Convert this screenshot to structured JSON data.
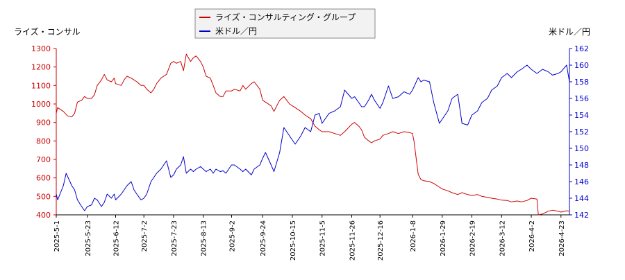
{
  "chart_data": {
    "type": "line",
    "left_axis_label": "ライズ・コンサル",
    "right_axis_label": "米ドル／円",
    "legend_placement": "top-center",
    "grid": false,
    "x_ticks": [
      "2025-5-1",
      "2025-5-23",
      "2025-6-12",
      "2025-7-2",
      "2025-7-23",
      "2025-8-13",
      "2025-9-2",
      "2025-9-24",
      "2025-10-15",
      "2025-11-5",
      "2025-11-26",
      "2025-12-16",
      "2026-1-8",
      "2026-1-29",
      "2026-2-19",
      "2026-3-12",
      "2026-4-2",
      "2026-4-23"
    ],
    "x_range": [
      "2025-5-1",
      "2026-4-29"
    ],
    "y_left": {
      "ylim": [
        400,
        1300
      ],
      "ticks": [
        400,
        500,
        600,
        700,
        800,
        900,
        1000,
        1100,
        1200,
        1300
      ]
    },
    "y_right": {
      "ylim": [
        142,
        162
      ],
      "ticks": [
        142,
        144,
        146,
        148,
        150,
        152,
        154,
        156,
        158,
        160,
        162
      ]
    },
    "series": [
      {
        "name": "ライズ・コンサルティング・グループ",
        "axis": "left",
        "color": "#cc0000",
        "points": [
          [
            "2025-5-1",
            950
          ],
          [
            "2025-5-2",
            980
          ],
          [
            "2025-5-6",
            960
          ],
          [
            "2025-5-9",
            935
          ],
          [
            "2025-5-12",
            930
          ],
          [
            "2025-5-14",
            950
          ],
          [
            "2025-5-16",
            1010
          ],
          [
            "2025-5-19",
            1020
          ],
          [
            "2025-5-21",
            1040
          ],
          [
            "2025-5-23",
            1030
          ],
          [
            "2025-5-26",
            1030
          ],
          [
            "2025-5-28",
            1050
          ],
          [
            "2025-5-30",
            1100
          ],
          [
            "2025-6-2",
            1130
          ],
          [
            "2025-6-4",
            1160
          ],
          [
            "2025-6-6",
            1130
          ],
          [
            "2025-6-9",
            1120
          ],
          [
            "2025-6-11",
            1140
          ],
          [
            "2025-6-12",
            1110
          ],
          [
            "2025-6-16",
            1100
          ],
          [
            "2025-6-18",
            1130
          ],
          [
            "2025-6-20",
            1150
          ],
          [
            "2025-6-23",
            1140
          ],
          [
            "2025-6-25",
            1130
          ],
          [
            "2025-6-27",
            1120
          ],
          [
            "2025-6-30",
            1100
          ],
          [
            "2025-7-2",
            1100
          ],
          [
            "2025-7-4",
            1080
          ],
          [
            "2025-7-7",
            1060
          ],
          [
            "2025-7-9",
            1080
          ],
          [
            "2025-7-11",
            1110
          ],
          [
            "2025-7-14",
            1140
          ],
          [
            "2025-7-16",
            1150
          ],
          [
            "2025-7-18",
            1160
          ],
          [
            "2025-7-21",
            1220
          ],
          [
            "2025-7-23",
            1230
          ],
          [
            "2025-7-25",
            1220
          ],
          [
            "2025-7-28",
            1230
          ],
          [
            "2025-7-30",
            1180
          ],
          [
            "2025-8-1",
            1270
          ],
          [
            "2025-8-4",
            1230
          ],
          [
            "2025-8-6",
            1250
          ],
          [
            "2025-8-8",
            1260
          ],
          [
            "2025-8-11",
            1230
          ],
          [
            "2025-8-13",
            1200
          ],
          [
            "2025-8-15",
            1150
          ],
          [
            "2025-8-18",
            1140
          ],
          [
            "2025-8-20",
            1100
          ],
          [
            "2025-8-22",
            1060
          ],
          [
            "2025-8-25",
            1040
          ],
          [
            "2025-8-27",
            1040
          ],
          [
            "2025-8-29",
            1070
          ],
          [
            "2025-9-2",
            1070
          ],
          [
            "2025-9-4",
            1080
          ],
          [
            "2025-9-8",
            1070
          ],
          [
            "2025-9-10",
            1100
          ],
          [
            "2025-9-12",
            1080
          ],
          [
            "2025-9-16",
            1110
          ],
          [
            "2025-9-18",
            1120
          ],
          [
            "2025-9-22",
            1080
          ],
          [
            "2025-9-24",
            1020
          ],
          [
            "2025-9-26",
            1010
          ],
          [
            "2025-9-30",
            990
          ],
          [
            "2025-10-2",
            960
          ],
          [
            "2025-10-6",
            1020
          ],
          [
            "2025-10-9",
            1040
          ],
          [
            "2025-10-13",
            1000
          ],
          [
            "2025-10-15",
            990
          ],
          [
            "2025-10-17",
            980
          ],
          [
            "2025-10-21",
            960
          ],
          [
            "2025-10-24",
            940
          ],
          [
            "2025-10-28",
            920
          ],
          [
            "2025-10-31",
            880
          ],
          [
            "2025-11-3",
            860
          ],
          [
            "2025-11-5",
            850
          ],
          [
            "2025-11-10",
            850
          ],
          [
            "2025-11-14",
            840
          ],
          [
            "2025-11-18",
            830
          ],
          [
            "2025-11-21",
            850
          ],
          [
            "2025-11-26",
            890
          ],
          [
            "2025-11-28",
            900
          ],
          [
            "2025-12-1",
            880
          ],
          [
            "2025-12-3",
            860
          ],
          [
            "2025-12-5",
            820
          ],
          [
            "2025-12-8",
            800
          ],
          [
            "2025-12-10",
            790
          ],
          [
            "2025-12-12",
            800
          ],
          [
            "2025-12-16",
            810
          ],
          [
            "2025-12-18",
            830
          ],
          [
            "2025-12-22",
            840
          ],
          [
            "2025-12-25",
            850
          ],
          [
            "2025-12-29",
            840
          ],
          [
            "2026-1-2",
            850
          ],
          [
            "2026-1-6",
            845
          ],
          [
            "2026-1-8",
            840
          ],
          [
            "2026-1-9",
            800
          ],
          [
            "2026-1-12",
            620
          ],
          [
            "2026-1-14",
            590
          ],
          [
            "2026-1-16",
            585
          ],
          [
            "2026-1-20",
            580
          ],
          [
            "2026-1-23",
            570
          ],
          [
            "2026-1-27",
            550
          ],
          [
            "2026-1-29",
            540
          ],
          [
            "2026-2-2",
            530
          ],
          [
            "2026-2-5",
            520
          ],
          [
            "2026-2-9",
            510
          ],
          [
            "2026-2-12",
            520
          ],
          [
            "2026-2-16",
            510
          ],
          [
            "2026-2-19",
            505
          ],
          [
            "2026-2-23",
            510
          ],
          [
            "2026-2-26",
            500
          ],
          [
            "2026-3-2",
            495
          ],
          [
            "2026-3-5",
            490
          ],
          [
            "2026-3-9",
            485
          ],
          [
            "2026-3-12",
            480
          ],
          [
            "2026-3-16",
            478
          ],
          [
            "2026-3-19",
            470
          ],
          [
            "2026-3-23",
            475
          ],
          [
            "2026-3-26",
            470
          ],
          [
            "2026-3-30",
            478
          ],
          [
            "2026-4-2",
            490
          ],
          [
            "2026-4-6",
            485
          ],
          [
            "2026-4-7",
            400
          ],
          [
            "2026-4-10",
            405
          ],
          [
            "2026-4-14",
            420
          ],
          [
            "2026-4-17",
            425
          ],
          [
            "2026-4-21",
            420
          ],
          [
            "2026-4-23",
            415
          ],
          [
            "2026-4-27",
            422
          ],
          [
            "2026-4-29",
            420
          ]
        ]
      },
      {
        "name": "米ドル／円",
        "axis": "right",
        "color": "#0000cc",
        "points": [
          [
            "2025-5-1",
            144.5
          ],
          [
            "2025-5-2",
            143.8
          ],
          [
            "2025-5-6",
            145.5
          ],
          [
            "2025-5-8",
            147.0
          ],
          [
            "2025-5-12",
            145.5
          ],
          [
            "2025-5-14",
            145.0
          ],
          [
            "2025-5-16",
            143.8
          ],
          [
            "2025-5-19",
            143.0
          ],
          [
            "2025-5-21",
            142.5
          ],
          [
            "2025-5-23",
            143.0
          ],
          [
            "2025-5-26",
            143.2
          ],
          [
            "2025-5-28",
            144.0
          ],
          [
            "2025-5-30",
            143.8
          ],
          [
            "2025-6-2",
            143.0
          ],
          [
            "2025-6-4",
            143.5
          ],
          [
            "2025-6-6",
            144.5
          ],
          [
            "2025-6-9",
            144.0
          ],
          [
            "2025-6-11",
            144.5
          ],
          [
            "2025-6-12",
            143.8
          ],
          [
            "2025-6-16",
            144.5
          ],
          [
            "2025-6-18",
            145.0
          ],
          [
            "2025-6-20",
            145.5
          ],
          [
            "2025-6-23",
            146.0
          ],
          [
            "2025-6-25",
            145.0
          ],
          [
            "2025-6-27",
            144.5
          ],
          [
            "2025-6-30",
            143.8
          ],
          [
            "2025-7-2",
            144.0
          ],
          [
            "2025-7-4",
            144.5
          ],
          [
            "2025-7-7",
            146.0
          ],
          [
            "2025-7-9",
            146.5
          ],
          [
            "2025-7-11",
            147.0
          ],
          [
            "2025-7-14",
            147.5
          ],
          [
            "2025-7-16",
            148.0
          ],
          [
            "2025-7-18",
            148.5
          ],
          [
            "2025-7-21",
            146.5
          ],
          [
            "2025-7-23",
            146.8
          ],
          [
            "2025-7-25",
            147.5
          ],
          [
            "2025-7-28",
            148.0
          ],
          [
            "2025-7-30",
            149.0
          ],
          [
            "2025-8-1",
            147.0
          ],
          [
            "2025-8-4",
            147.5
          ],
          [
            "2025-8-6",
            147.2
          ],
          [
            "2025-8-8",
            147.5
          ],
          [
            "2025-8-11",
            147.8
          ],
          [
            "2025-8-13",
            147.5
          ],
          [
            "2025-8-15",
            147.2
          ],
          [
            "2025-8-18",
            147.5
          ],
          [
            "2025-8-20",
            147.0
          ],
          [
            "2025-8-22",
            147.5
          ],
          [
            "2025-8-25",
            147.2
          ],
          [
            "2025-8-27",
            147.3
          ],
          [
            "2025-8-29",
            147.0
          ],
          [
            "2025-9-2",
            148.0
          ],
          [
            "2025-9-4",
            148.0
          ],
          [
            "2025-9-8",
            147.5
          ],
          [
            "2025-9-10",
            147.2
          ],
          [
            "2025-9-12",
            147.5
          ],
          [
            "2025-9-16",
            146.8
          ],
          [
            "2025-9-18",
            147.5
          ],
          [
            "2025-9-22",
            148.0
          ],
          [
            "2025-9-24",
            148.8
          ],
          [
            "2025-9-26",
            149.5
          ],
          [
            "2025-9-30",
            148.0
          ],
          [
            "2025-10-2",
            147.2
          ],
          [
            "2025-10-6",
            149.5
          ],
          [
            "2025-10-9",
            152.5
          ],
          [
            "2025-10-13",
            151.5
          ],
          [
            "2025-10-15",
            151.0
          ],
          [
            "2025-10-17",
            150.5
          ],
          [
            "2025-10-21",
            151.5
          ],
          [
            "2025-10-24",
            152.5
          ],
          [
            "2025-10-28",
            152.0
          ],
          [
            "2025-10-31",
            154.0
          ],
          [
            "2025-11-3",
            154.2
          ],
          [
            "2025-11-5",
            153.0
          ],
          [
            "2025-11-10",
            154.2
          ],
          [
            "2025-11-14",
            154.5
          ],
          [
            "2025-11-18",
            155.0
          ],
          [
            "2025-11-21",
            157.0
          ],
          [
            "2025-11-26",
            156.0
          ],
          [
            "2025-11-28",
            156.2
          ],
          [
            "2025-12-1",
            155.5
          ],
          [
            "2025-12-3",
            155.0
          ],
          [
            "2025-12-5",
            155.0
          ],
          [
            "2025-12-8",
            155.8
          ],
          [
            "2025-12-10",
            156.5
          ],
          [
            "2025-12-12",
            155.8
          ],
          [
            "2025-12-16",
            154.8
          ],
          [
            "2025-12-18",
            155.5
          ],
          [
            "2025-12-22",
            157.5
          ],
          [
            "2025-12-25",
            156.0
          ],
          [
            "2025-12-29",
            156.2
          ],
          [
            "2026-1-2",
            156.8
          ],
          [
            "2026-1-6",
            156.5
          ],
          [
            "2026-1-8",
            157.0
          ],
          [
            "2026-1-12",
            158.5
          ],
          [
            "2026-1-14",
            158.0
          ],
          [
            "2026-1-16",
            158.2
          ],
          [
            "2026-1-20",
            158.0
          ],
          [
            "2026-1-23",
            155.5
          ],
          [
            "2026-1-27",
            153.0
          ],
          [
            "2026-1-29",
            153.5
          ],
          [
            "2026-2-2",
            154.5
          ],
          [
            "2026-2-5",
            156.0
          ],
          [
            "2026-2-9",
            156.5
          ],
          [
            "2026-2-12",
            153.0
          ],
          [
            "2026-2-16",
            152.8
          ],
          [
            "2026-2-19",
            154.0
          ],
          [
            "2026-2-23",
            154.5
          ],
          [
            "2026-2-26",
            155.5
          ],
          [
            "2026-3-2",
            156.0
          ],
          [
            "2026-3-5",
            157.0
          ],
          [
            "2026-3-9",
            157.5
          ],
          [
            "2026-3-12",
            158.5
          ],
          [
            "2026-3-16",
            159.0
          ],
          [
            "2026-3-19",
            158.5
          ],
          [
            "2026-3-23",
            159.2
          ],
          [
            "2026-3-26",
            159.5
          ],
          [
            "2026-3-30",
            160.0
          ],
          [
            "2026-4-2",
            159.5
          ],
          [
            "2026-4-6",
            159.0
          ],
          [
            "2026-4-10",
            159.5
          ],
          [
            "2026-4-14",
            159.2
          ],
          [
            "2026-4-17",
            158.8
          ],
          [
            "2026-4-21",
            159.0
          ],
          [
            "2026-4-23",
            159.2
          ],
          [
            "2026-4-27",
            160.0
          ],
          [
            "2026-4-29",
            158.0
          ]
        ]
      }
    ]
  }
}
